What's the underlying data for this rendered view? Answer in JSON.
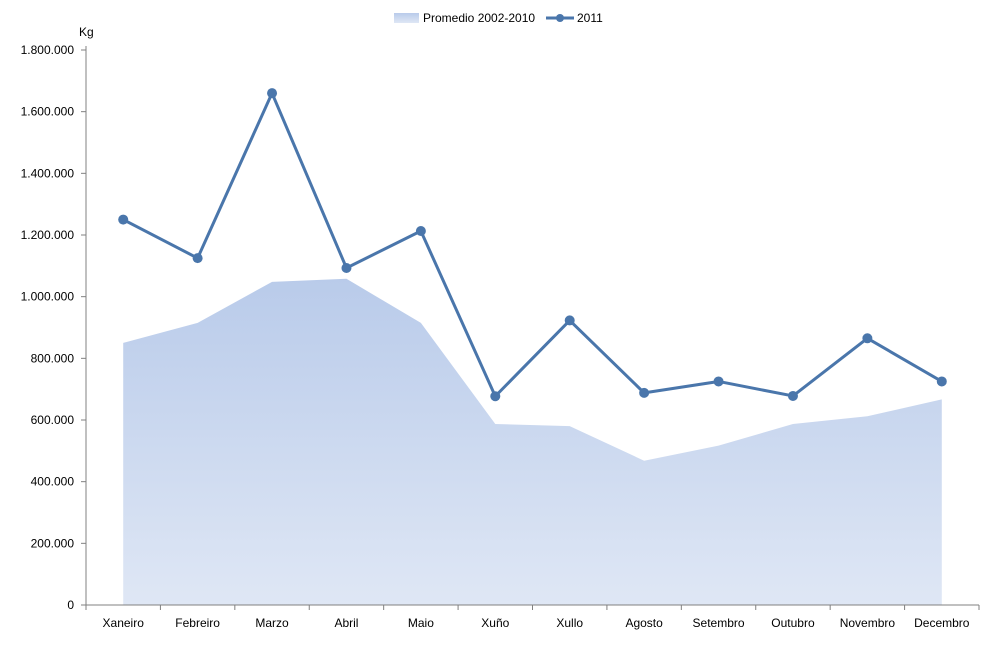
{
  "chart_data": {
    "type": "area",
    "title": "",
    "xlabel": "",
    "ylabel": "Kg",
    "ylim": [
      0,
      1800000
    ],
    "y_ticks": [
      0,
      200000,
      400000,
      600000,
      800000,
      1000000,
      1200000,
      1400000,
      1600000,
      1800000
    ],
    "y_tick_labels": [
      "0",
      "200.000",
      "400.000",
      "600.000",
      "800.000",
      "1.000.000",
      "1.200.000",
      "1.400.000",
      "1.600.000",
      "1.800.000"
    ],
    "grid": false,
    "legend_position": "top",
    "categories": [
      "Xaneiro",
      "Febreiro",
      "Marzo",
      "Abril",
      "Maio",
      "Xuño",
      "Xullo",
      "Agosto",
      "Setembro",
      "Outubro",
      "Novembro",
      "Decembro"
    ],
    "series": [
      {
        "name": "Promedio 2002-2010",
        "kind": "area",
        "color": "#b9cbea",
        "values": [
          850000,
          915000,
          1048000,
          1058000,
          915000,
          587000,
          580000,
          468000,
          517000,
          587000,
          612000,
          667000
        ]
      },
      {
        "name": "2011",
        "kind": "line",
        "color": "#4a76ab",
        "values": [
          1250000,
          1125000,
          1660000,
          1093000,
          1213000,
          677000,
          923000,
          688000,
          725000,
          678000,
          865000,
          725000
        ]
      }
    ]
  }
}
